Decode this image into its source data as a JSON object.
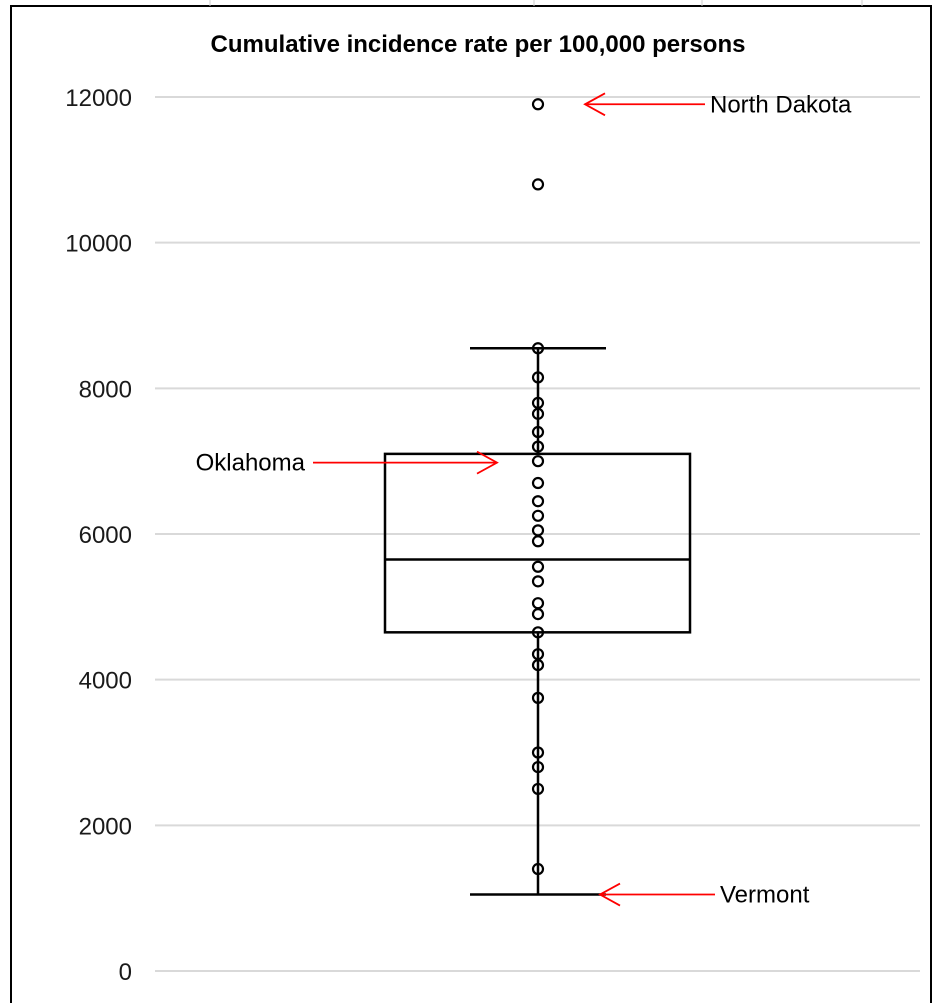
{
  "chart_data": {
    "type": "boxplot",
    "title": "Cumulative incidence rate per 100,000 persons",
    "xlabel": "",
    "ylabel": "",
    "ylim": [
      0,
      12000
    ],
    "yticks": [
      0,
      2000,
      4000,
      6000,
      8000,
      10000,
      12000
    ],
    "grid": true,
    "box": {
      "whisker_low": 1050,
      "q1": 4650,
      "median": 5650,
      "q3": 7100,
      "whisker_high": 8550
    },
    "points": [
      1400,
      2500,
      2800,
      3000,
      3750,
      4200,
      4350,
      4650,
      4900,
      5050,
      5350,
      5550,
      5900,
      6050,
      6250,
      6450,
      6700,
      7000,
      7200,
      7400,
      7650,
      7800,
      8150,
      8550,
      10800,
      11900
    ],
    "annotations": [
      {
        "label": "North Dakota",
        "value": 11900,
        "side": "right"
      },
      {
        "label": "Oklahoma",
        "value": 6980,
        "side": "left"
      },
      {
        "label": "Vermont",
        "value": 1050,
        "side": "right"
      }
    ],
    "annotation_color": "#ff0000"
  }
}
